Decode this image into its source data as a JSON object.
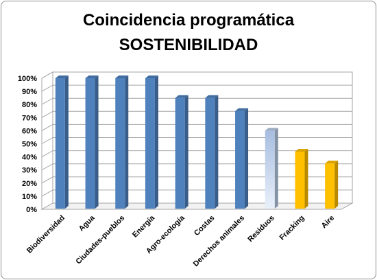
{
  "chart_data": {
    "type": "bar",
    "title": [
      "Coincidencia programática",
      "SOSTENIBILIDAD"
    ],
    "xlabel": "",
    "ylabel": "",
    "categories": [
      "Biodiversidad",
      "Agua",
      "Ciudades-pueblos",
      "Energía",
      "Agro-ecología",
      "Costas",
      "Derechos animales",
      "Residuos",
      "Fracking",
      "Aire"
    ],
    "values": [
      100,
      100,
      100,
      100,
      85,
      85,
      75,
      60,
      44,
      35
    ],
    "colors": [
      "#4f81bd",
      "#4f81bd",
      "#4f81bd",
      "#4f81bd",
      "#4f81bd",
      "#4f81bd",
      "#4f81bd",
      "#b8cce4",
      "#ffc000",
      "#ffc000"
    ],
    "yticks": [
      "0%",
      "10%",
      "20%",
      "30%",
      "40%",
      "50%",
      "60%",
      "70%",
      "80%",
      "90%",
      "100%"
    ],
    "ylim": [
      0,
      100
    ],
    "grid": true,
    "legend": "none"
  }
}
